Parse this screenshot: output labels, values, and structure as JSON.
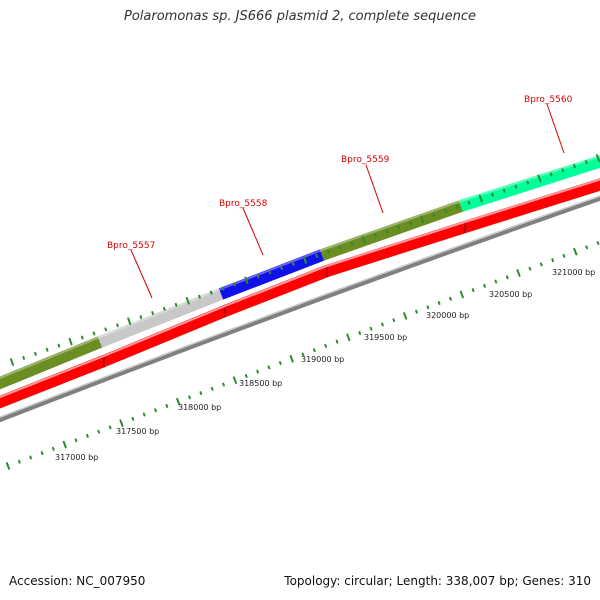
{
  "title": "Polaromonas sp. JS666 plasmid 2, complete sequence",
  "footer": {
    "accession": "Accession: NC_007950",
    "summary": "Topology: circular; Length: 338,007 bp; Genes: 310"
  },
  "colors": {
    "reverse_strand_genes": "#ff0000",
    "tick": "#2e8b2e",
    "backbone": "#808080",
    "gene_label": "#d40000"
  },
  "genes": [
    {
      "id": "Bpro_5557",
      "label": "Bpro_5557",
      "color": "#c8c8c8"
    },
    {
      "id": "Bpro_5558",
      "label": "Bpro_5558",
      "color": "#1010e8"
    },
    {
      "id": "Bpro_5559",
      "label": "Bpro_5559",
      "color": "#6b8e23"
    },
    {
      "id": "Bpro_5560",
      "label": "Bpro_5560",
      "color": "#00ff99"
    }
  ],
  "bp_labels": [
    "317000 bp",
    "317500 bp",
    "318000 bp",
    "318500 bp",
    "319000 bp",
    "319500 bp",
    "320000 bp",
    "320500 bp",
    "321000 bp"
  ]
}
